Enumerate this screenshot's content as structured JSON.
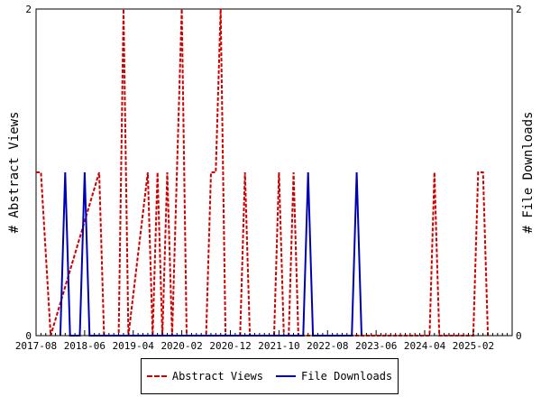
{
  "chart_data": {
    "type": "line",
    "x_tick_labels": [
      "2017-08",
      "2018-06",
      "2019-04",
      "2020-02",
      "2020-12",
      "2021-10",
      "2022-08",
      "2023-06",
      "2024-04",
      "2025-02"
    ],
    "x_tick_indices": [
      0,
      10,
      20,
      30,
      40,
      50,
      60,
      70,
      80,
      90
    ],
    "y_left": {
      "label": "# Abstract Views",
      "range": [
        0,
        2
      ],
      "ticks": [
        "0",
        "2"
      ]
    },
    "y_right": {
      "label": "# File Downloads",
      "range": [
        0,
        2
      ],
      "ticks": [
        "0",
        "2"
      ]
    },
    "month_count": 99,
    "series": [
      {
        "name": "Abstract Views",
        "color": "#cc0000",
        "dash": "dashed",
        "axis": "left",
        "points": [
          [
            0,
            1
          ],
          [
            1,
            1
          ],
          [
            3,
            0
          ],
          [
            13,
            1
          ],
          [
            14,
            0
          ],
          [
            17,
            0
          ],
          [
            18,
            2
          ],
          [
            19,
            0
          ],
          [
            23,
            1
          ],
          [
            24,
            0
          ],
          [
            25,
            1
          ],
          [
            26,
            0
          ],
          [
            27,
            1
          ],
          [
            28,
            0
          ],
          [
            29,
            1
          ],
          [
            30,
            2
          ],
          [
            31,
            0
          ],
          [
            35,
            0
          ],
          [
            36,
            1
          ],
          [
            37,
            1
          ],
          [
            38,
            2
          ],
          [
            39,
            0
          ],
          [
            42,
            0
          ],
          [
            43,
            1
          ],
          [
            44,
            0
          ],
          [
            49,
            0
          ],
          [
            50,
            1
          ],
          [
            51,
            0
          ],
          [
            52,
            0
          ],
          [
            53,
            1
          ],
          [
            54,
            0
          ],
          [
            81,
            0
          ],
          [
            82,
            1
          ],
          [
            83,
            0
          ],
          [
            90,
            0
          ],
          [
            91,
            1
          ],
          [
            92,
            1
          ],
          [
            93,
            0
          ]
        ]
      },
      {
        "name": "File Downloads",
        "color": "#0000b3",
        "dash": "solid",
        "axis": "right",
        "points": [
          [
            5,
            0
          ],
          [
            6,
            1
          ],
          [
            7,
            0
          ],
          [
            9,
            0
          ],
          [
            10,
            1
          ],
          [
            11,
            0
          ],
          [
            55,
            0
          ],
          [
            56,
            1
          ],
          [
            57,
            0
          ],
          [
            65,
            0
          ],
          [
            66,
            1
          ],
          [
            67,
            0
          ]
        ]
      }
    ]
  },
  "legend": [
    {
      "label": "Abstract Views",
      "style": "dashed"
    },
    {
      "label": "File Downloads",
      "style": "solid"
    }
  ]
}
